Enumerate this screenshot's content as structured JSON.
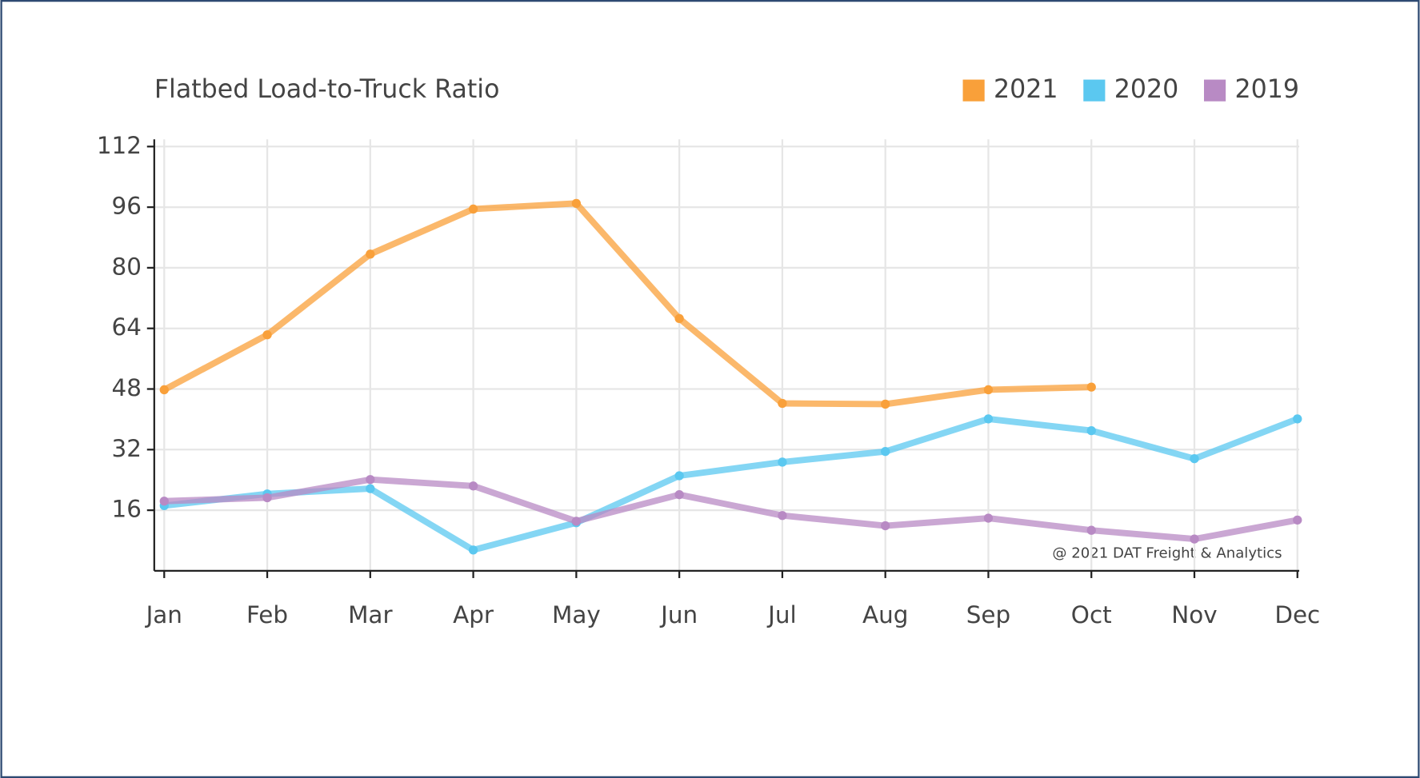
{
  "chart_data": {
    "type": "line",
    "title": "Flatbed Load-to-Truck Ratio",
    "annotation": "@ 2021 DAT Freight & Analytics",
    "categories": [
      "Jan",
      "Feb",
      "Mar",
      "Apr",
      "May",
      "Jun",
      "Jul",
      "Aug",
      "Sep",
      "Oct",
      "Nov",
      "Dec"
    ],
    "series": [
      {
        "name": "2021",
        "color": "#f9a03a",
        "values": [
          47.8,
          62.3,
          83.6,
          95.5,
          97,
          66.6,
          44.2,
          44,
          47.8,
          48.5,
          null,
          null
        ]
      },
      {
        "name": "2020",
        "color": "#5bc8f0",
        "values": [
          17.2,
          20.3,
          21.7,
          5.5,
          12.7,
          25.1,
          28.7,
          31.5,
          40.1,
          37,
          29.6,
          40.1
        ]
      },
      {
        "name": "2019",
        "color": "#b88ac4",
        "values": [
          18.4,
          19.3,
          24.1,
          22.4,
          13.1,
          20.1,
          14.6,
          11.9,
          13.9,
          10.7,
          8.4,
          13.4
        ]
      }
    ],
    "ylim": [
      0,
      112
    ],
    "yticks": [
      16,
      32,
      48,
      64,
      80,
      96,
      112
    ],
    "grid": true,
    "legend": "top-right"
  }
}
